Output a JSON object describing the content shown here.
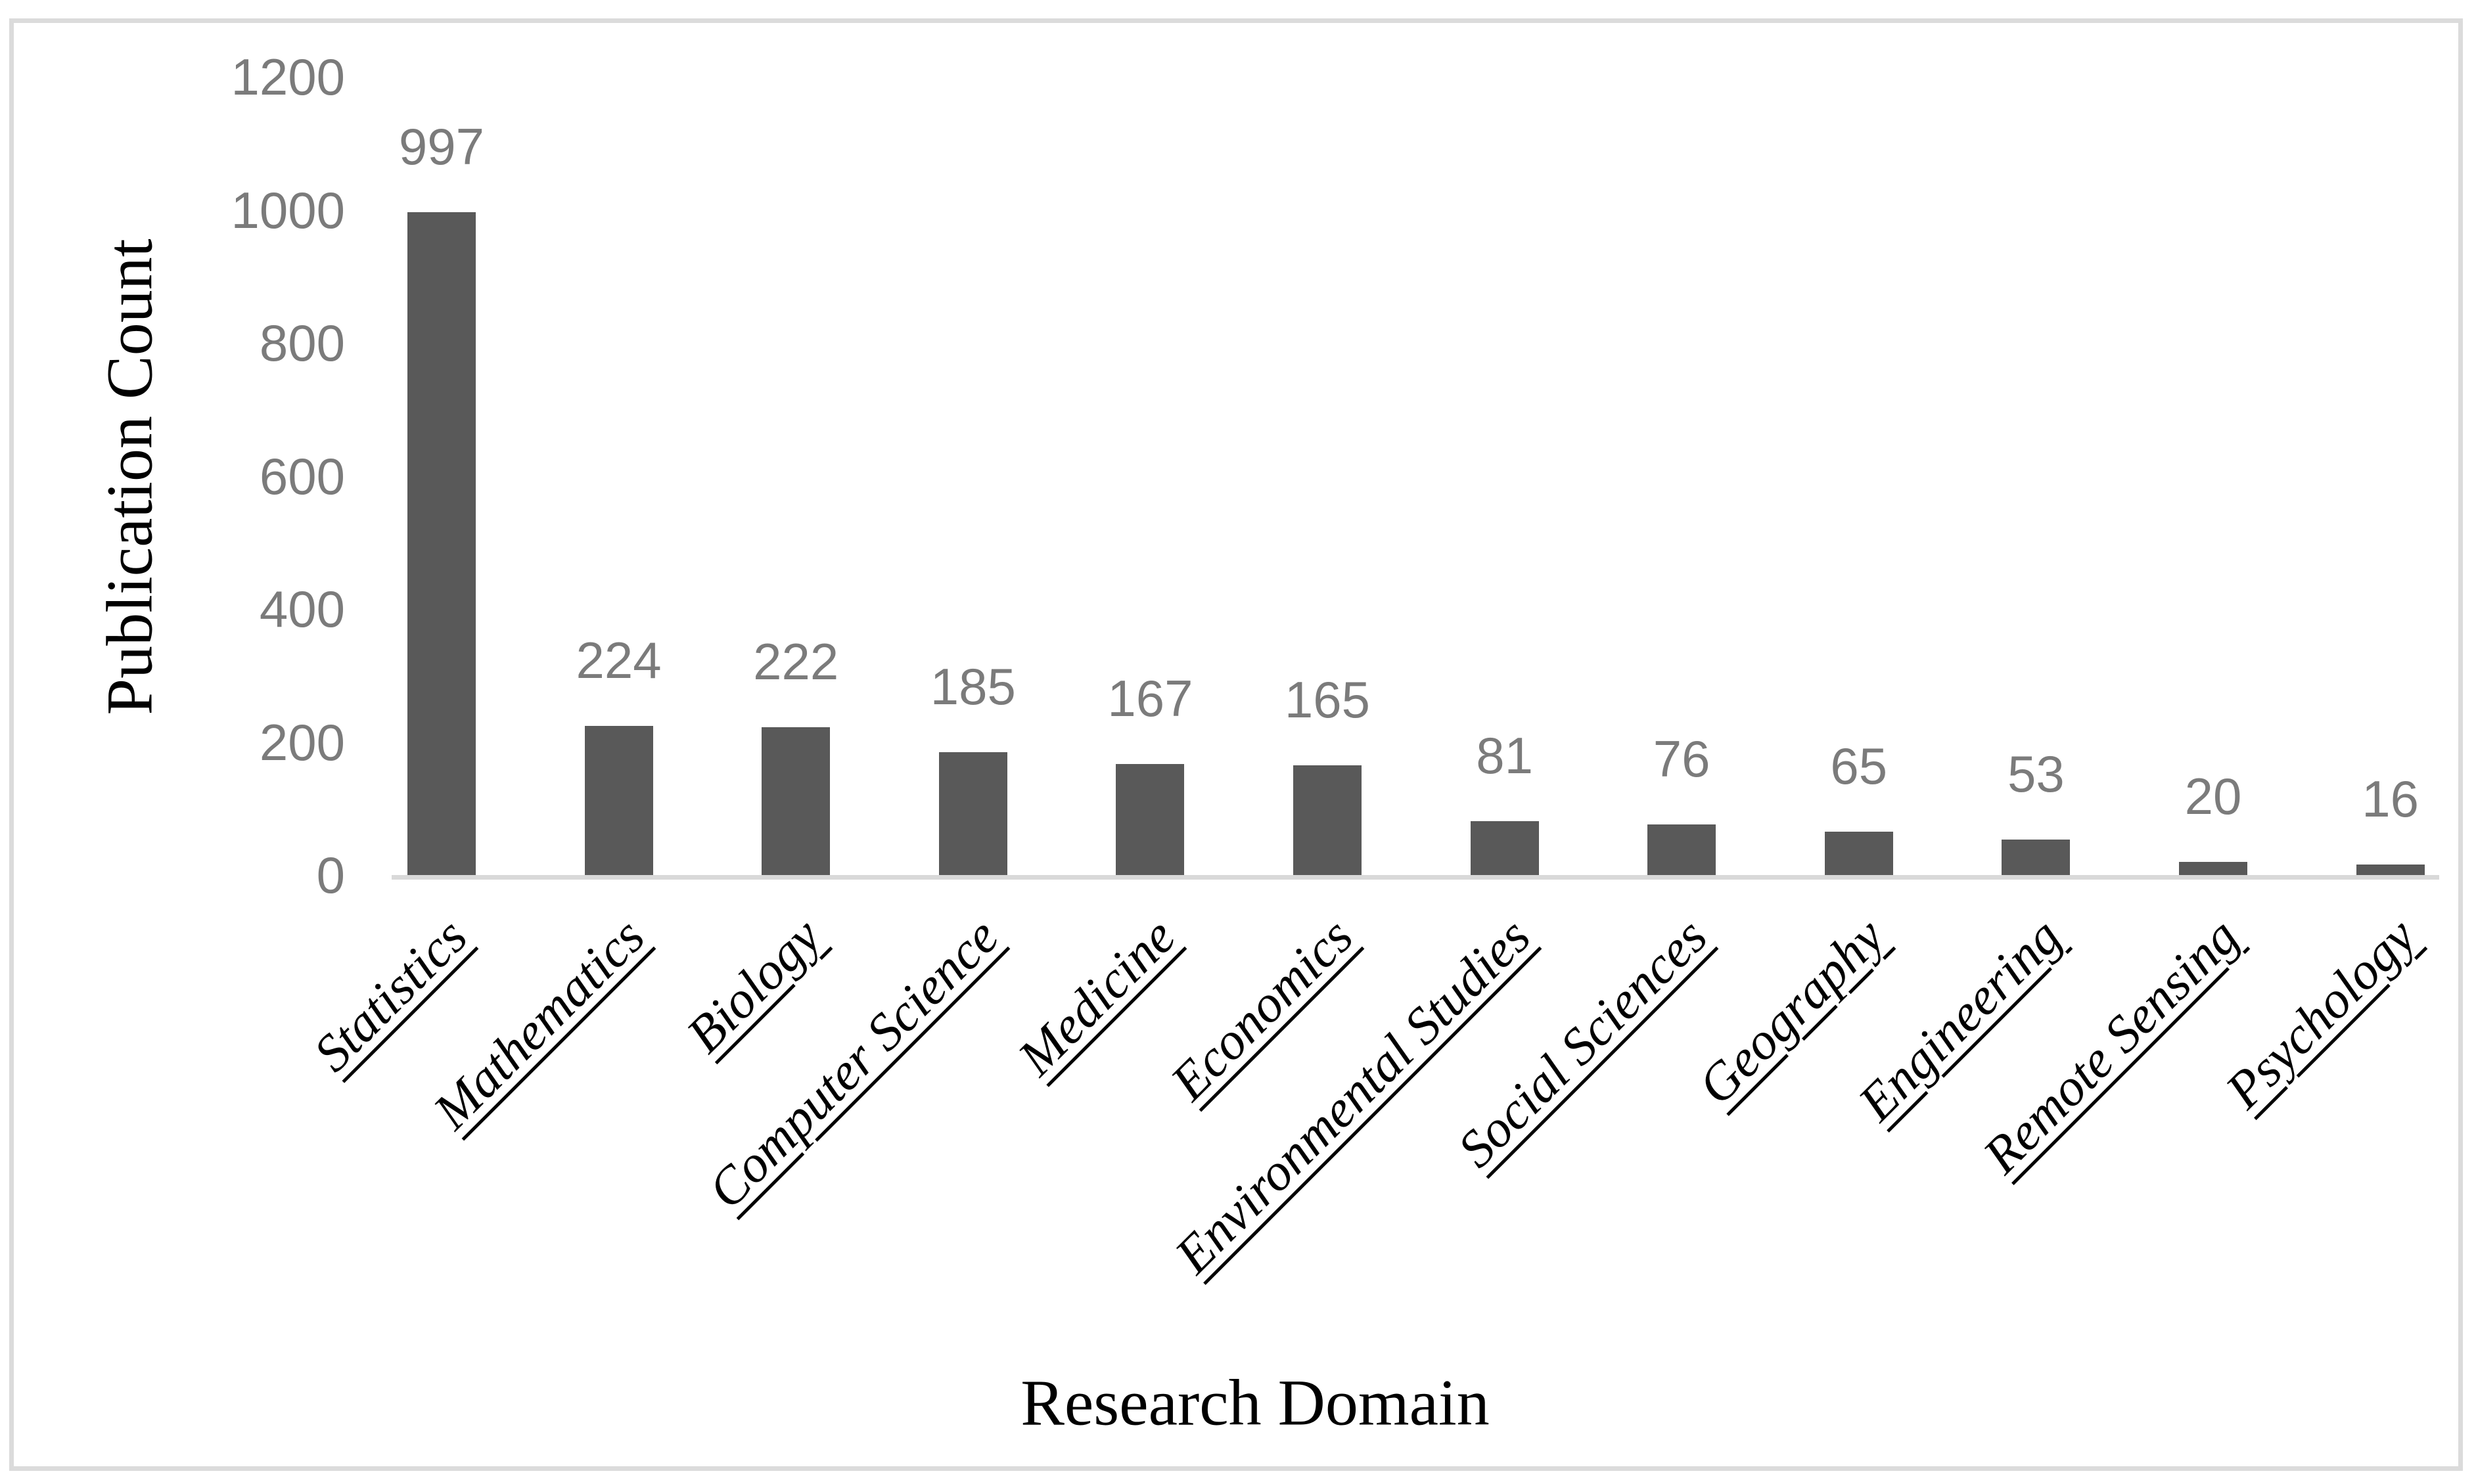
{
  "chart_data": {
    "type": "bar",
    "title": "",
    "xlabel": "Research Domain",
    "ylabel": "Publication Count",
    "categories": [
      "Statistics",
      "Mathematics",
      "Biology",
      "Computer Science",
      "Medicine",
      "Economics",
      "Environmental Studies",
      "Social Sciences",
      "Geography",
      "Engineering",
      "Remote Sensing",
      "Psychology"
    ],
    "values": [
      997,
      224,
      222,
      185,
      167,
      165,
      81,
      76,
      65,
      53,
      20,
      16
    ],
    "data_labels": [
      "997",
      "224",
      "222",
      "185",
      "167",
      "165",
      "81",
      "76",
      "65",
      "53",
      "20",
      "16"
    ],
    "ylim": [
      0,
      1200
    ],
    "yticks": [
      0,
      200,
      400,
      600,
      800,
      1000,
      1200
    ],
    "grid": false,
    "legend": "none",
    "bar_color": "#595959",
    "number_label_color": "#7b7b7b",
    "category_label_color": "#000000",
    "axis_title_color": "#000000",
    "baseline_color": "#d9d9d9",
    "frame_border_color": "#dbdbdb",
    "background_color": "#ffffff"
  }
}
